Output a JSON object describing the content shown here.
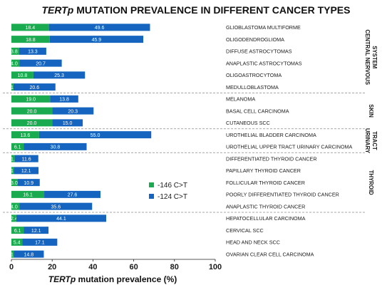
{
  "chart_data": {
    "type": "bar",
    "stacked": true,
    "orientation": "horizontal",
    "title_italic": "TERTp",
    "title_rest": " MUTATION PREVALENCE IN DIFFERENT CANCER TYPES",
    "xlabel_italic": "TERTp",
    "xlabel_rest": " mutation prevalence (%)",
    "ylabel": "",
    "xlim": [
      0,
      100
    ],
    "xticks": [
      "0",
      "20",
      "40",
      "60",
      "80",
      "100"
    ],
    "grid": false,
    "legend_position": "right-middle",
    "categories": [
      "GLIOBLASTOMA MULTIFORME",
      "OLIGODENDROGLIOMA",
      "DIFFUSE ASTROCYTOMAS",
      "ANAPLASTIC ASTROCYTOMAS",
      "OLIGOASTROCYTOMA",
      "MEDULLOBLASTOMA",
      "MELANOMA",
      "BASAL CELL CARCINOMA",
      "CUTANEOUS SCC",
      "UROTHELIAL BLADDER CARCINOMA",
      "UROTHELIAL UPPER TRACT URINARY CARCINOMA",
      "DIFFERENTIATED THYROID CANCER",
      "PAPILLARY THYROID CANCER",
      "FOLLICULAR THYROID CANCER",
      "POORLY DIFFERENTIATED THYROID CANCER",
      "ANAPLASTIC THYROID CANCER",
      "HEPATOCELLULAR CARCINOMA",
      "CERVICAL SCC",
      "HEAD AND NECK SCC",
      "OVARIAN CLEAR CELL CARCINOMA"
    ],
    "series": [
      {
        "name": "-146 C>T",
        "color": "#1aab50",
        "values": [
          18.4,
          18.8,
          3.8,
          4.0,
          10.8,
          1.0,
          19.0,
          20.0,
          20.0,
          13.6,
          6.1,
          1.6,
          1.2,
          3.0,
          16.1,
          4.0,
          2.4,
          6.1,
          5.4,
          1.1
        ],
        "labels": [
          "18.4",
          "18.8",
          "3.8",
          "4.0",
          "10.8",
          "1.0",
          "19.0",
          "20.0",
          "20.0",
          "13.6",
          "6.1",
          "1.6",
          "1.2",
          "3.0",
          "16.1",
          "4.0",
          "2.4",
          "6.1",
          "5.4",
          "1.1"
        ]
      },
      {
        "name": "-124 C>T",
        "color": "#1565c0",
        "values": [
          49.6,
          45.9,
          13.3,
          20.7,
          25.3,
          20.6,
          13.8,
          20.3,
          15.0,
          55.0,
          30.8,
          11.6,
          12.1,
          10.9,
          27.6,
          35.6,
          44.1,
          12.1,
          17.1,
          14.8
        ],
        "labels": [
          "49.6",
          "45.9",
          "13.3",
          "20.7",
          "25.3",
          "20.6",
          "13.8",
          "20.3",
          "15.0",
          "55.0",
          "30.8",
          "11.6",
          "12.1",
          "10.9",
          "27.6",
          "35.6",
          "44.1",
          "12.1",
          "17.1",
          "14.8"
        ]
      }
    ],
    "groups": [
      {
        "label": "CENTRAL NERVOUS SYSTEM",
        "lines": [
          "CENTRAL NERVOUS",
          "SYSTEM"
        ],
        "first": 0,
        "last": 5
      },
      {
        "label": "SKIN",
        "lines": [
          "SKIN"
        ],
        "first": 6,
        "last": 8
      },
      {
        "label": "URINARY TRACT",
        "lines": [
          "URINARY",
          "TRACT"
        ],
        "first": 9,
        "last": 10
      },
      {
        "label": "THYROID",
        "lines": [
          "THYROID"
        ],
        "first": 11,
        "last": 15
      },
      {
        "label": "",
        "lines": [],
        "first": 16,
        "last": 19
      }
    ]
  }
}
